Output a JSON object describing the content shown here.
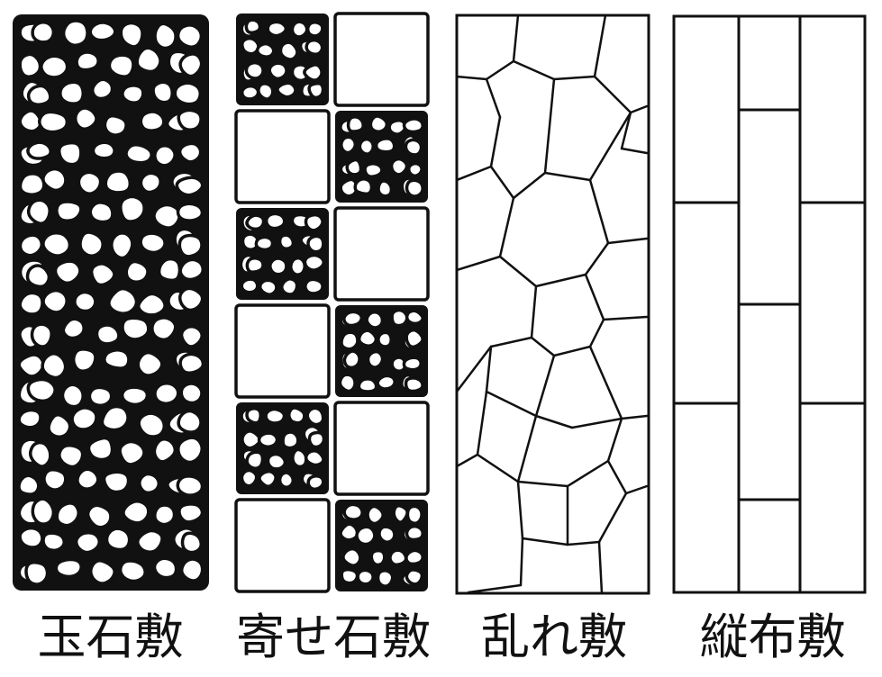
{
  "figure": {
    "panels": [
      {
        "id": "tamaishi",
        "caption": "玉石敷",
        "pattern": "round-cobbles"
      },
      {
        "id": "yoseishi",
        "caption": "寄せ石敷",
        "pattern": "alternating-squares-and-cobbles"
      },
      {
        "id": "midare",
        "caption": "乱れ敷",
        "pattern": "irregular-polygons"
      },
      {
        "id": "tatenuno",
        "caption": "縦布敷",
        "pattern": "vertical-running-bond"
      }
    ],
    "line_color": "#111111",
    "fill_color": "#ffffff"
  }
}
